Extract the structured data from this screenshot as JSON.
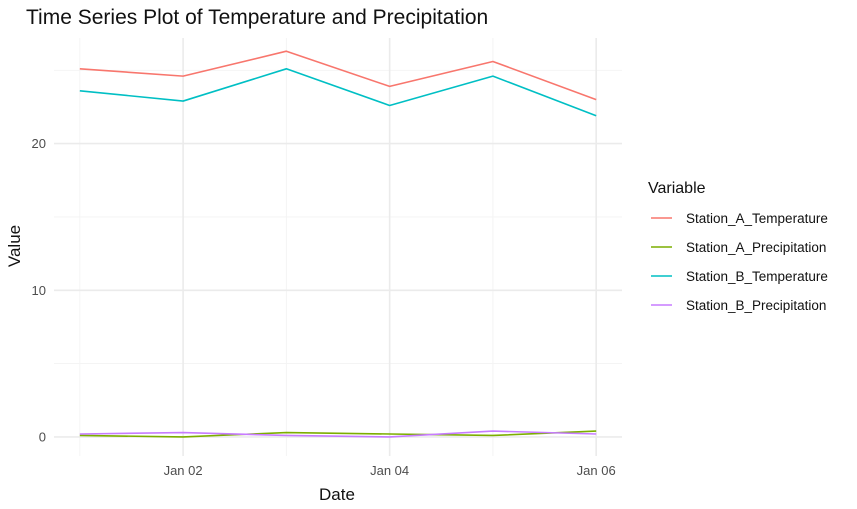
{
  "chart_data": {
    "type": "line",
    "title": "Time Series Plot of Temperature and Precipitation",
    "xlabel": "Date",
    "ylabel": "Value",
    "x": [
      "2023-01-01",
      "2023-01-02",
      "2023-01-03",
      "2023-01-04",
      "2023-01-05",
      "2023-01-06"
    ],
    "x_tick_labels": [
      "Jan 02",
      "Jan 04",
      "Jan 06"
    ],
    "y_ticks": [
      0,
      10,
      20
    ],
    "ylim": [
      -1.3,
      27.2
    ],
    "grid": true,
    "legend": {
      "title": "Variable",
      "position": "right"
    },
    "series": [
      {
        "name": "Station_A_Temperature",
        "color": "#F8766D",
        "values": [
          25.1,
          24.6,
          26.3,
          23.9,
          25.6,
          23.0
        ]
      },
      {
        "name": "Station_A_Precipitation",
        "color": "#7CAE00",
        "values": [
          0.1,
          0.0,
          0.3,
          0.2,
          0.1,
          0.4
        ]
      },
      {
        "name": "Station_B_Temperature",
        "color": "#00BFC4",
        "values": [
          23.6,
          22.9,
          25.1,
          22.6,
          24.6,
          21.9
        ]
      },
      {
        "name": "Station_B_Precipitation",
        "color": "#C77CFF",
        "values": [
          0.2,
          0.3,
          0.1,
          0.0,
          0.4,
          0.2
        ]
      }
    ]
  }
}
